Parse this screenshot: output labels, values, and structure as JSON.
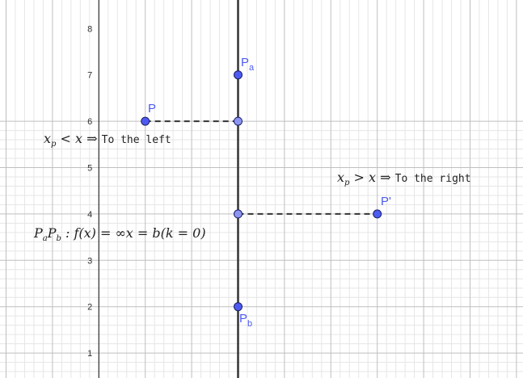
{
  "app": {
    "colors": {
      "background": "#ffffff",
      "minor_grid": "#e6e6e6",
      "major_grid": "#bfbfbf",
      "axis": "#333333",
      "point_fill": "#4d5bf0",
      "point_fill_dependent": "#8c96f2",
      "point_stroke": "#1a1f66",
      "label": "#4d5bf0",
      "segment": "#333333"
    },
    "y_ticks": [
      "1",
      "2",
      "3",
      "4",
      "5",
      "6",
      "7",
      "8"
    ],
    "points": {
      "P": {
        "label": "P",
        "x": -2,
        "y": 6
      },
      "P_prime": {
        "label": "P'",
        "x": 3,
        "y": 4
      },
      "Pa": {
        "label": "P",
        "sub": "a",
        "x": 0,
        "y": 7
      },
      "Pb": {
        "label": "P",
        "sub": "b",
        "x": 0,
        "y": 2
      },
      "proj_left": {
        "x": 0,
        "y": 6
      },
      "proj_right": {
        "x": 0,
        "y": 4
      }
    },
    "texts": {
      "left_rule": {
        "x_p": "x",
        "x_p_sub": "p",
        "rel": " < ",
        "x": "x",
        "implies": " ⇒ ",
        "words": "To the left"
      },
      "right_rule": {
        "x_p": "x",
        "x_p_sub": "p",
        "rel": " > ",
        "x": "x",
        "implies": " ⇒ ",
        "words": "To the right"
      },
      "line_eq": {
        "P1": "P",
        "P1_sub": "a",
        "P2": "P",
        "P2_sub": "b",
        "rest": " : f(x) = ∞x = b(k = 0)"
      }
    }
  }
}
